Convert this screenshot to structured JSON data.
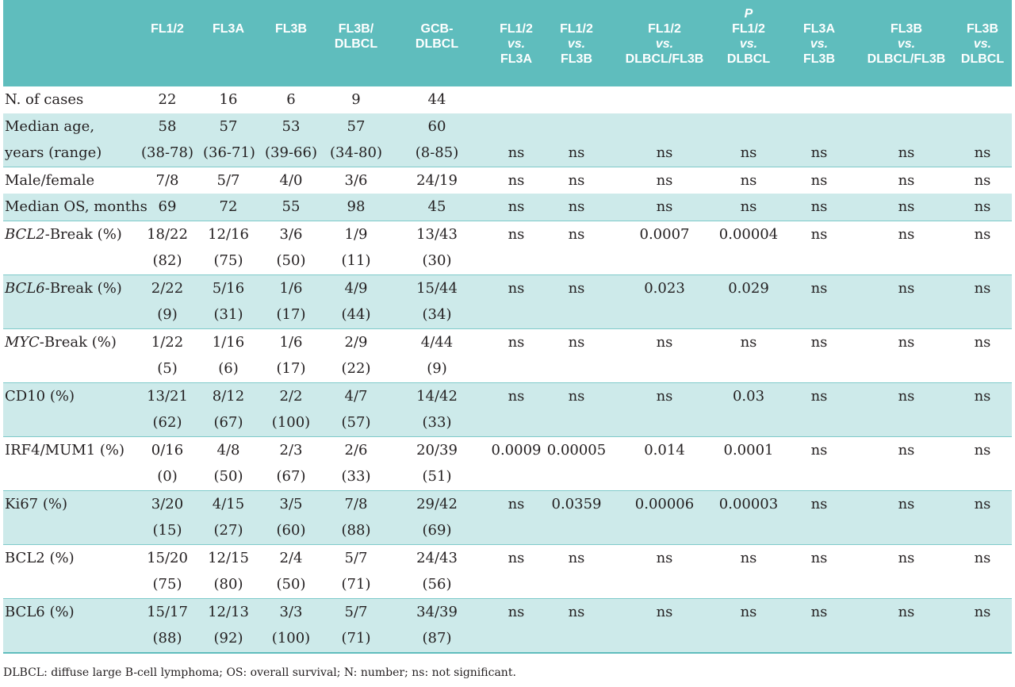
{
  "header": {
    "p_label": "P",
    "columns": [
      {
        "top": "",
        "l1": "",
        "l2": "",
        "vs": false
      },
      {
        "top": "",
        "l1": "FL1/2",
        "l2": "",
        "vs": false
      },
      {
        "top": "",
        "l1": "FL3A",
        "l2": "",
        "vs": false
      },
      {
        "top": "",
        "l1": "FL3B",
        "l2": "",
        "vs": false
      },
      {
        "top": "",
        "l1": "FL3B/",
        "l2": "DLBCL",
        "vs": false
      },
      {
        "top": "",
        "l1": "GCB-",
        "l2": "DLBCL",
        "vs": false
      },
      {
        "top": "",
        "l1": "FL1/2",
        "vs_text": "vs.",
        "l2": "FL3A",
        "vs": true
      },
      {
        "top": "",
        "l1": "FL1/2",
        "vs_text": "vs.",
        "l2": "FL3B",
        "vs": true
      },
      {
        "top": "",
        "l1": "FL1/2",
        "vs_text": "vs.",
        "l2": "DLBCL/FL3B",
        "vs": true
      },
      {
        "top": "P",
        "l1": "FL1/2",
        "vs_text": "vs.",
        "l2": "DLBCL",
        "vs": true
      },
      {
        "top": "",
        "l1": "FL3A",
        "vs_text": "vs.",
        "l2": "FL3B",
        "vs": true
      },
      {
        "top": "",
        "l1": "FL3B",
        "vs_text": "vs.",
        "l2": "DLBCL/FL3B",
        "vs": true
      },
      {
        "top": "",
        "l1": "FL3B",
        "vs_text": "vs.",
        "l2": "DLBCL",
        "vs": true
      }
    ]
  },
  "rows": [
    {
      "label": "N. of cases",
      "label2": "",
      "italic_prefix": "",
      "label_suffix": "",
      "shade": false,
      "group_start": false,
      "line1": [
        "22",
        "16",
        "6",
        "9",
        "44",
        "",
        "",
        "",
        "",
        "",
        "",
        ""
      ],
      "line2": null
    },
    {
      "label": "Median age,",
      "label2": "years (range)",
      "italic_prefix": "",
      "label_suffix": "",
      "shade": true,
      "group_start": false,
      "line1": [
        "58",
        "57",
        "53",
        "57",
        "60",
        "",
        "",
        "",
        "",
        "",
        "",
        ""
      ],
      "line2": [
        "(38-78)",
        "(36-71)",
        "(39-66)",
        "(34-80)",
        "(8-85)",
        "ns",
        "ns",
        "ns",
        "ns",
        "ns",
        "ns",
        "ns"
      ]
    },
    {
      "label": "Male/female",
      "label2": "",
      "italic_prefix": "",
      "label_suffix": "",
      "shade": false,
      "group_start": true,
      "line1": [
        "7/8",
        "5/7",
        "4/0",
        "3/6",
        "24/19",
        "ns",
        "ns",
        "ns",
        "ns",
        "ns",
        "ns",
        "ns"
      ],
      "line2": null
    },
    {
      "label": "Median OS, months",
      "label2": "",
      "italic_prefix": "",
      "label_suffix": "",
      "shade": true,
      "group_start": false,
      "line1": [
        "69",
        "72",
        "55",
        "98",
        "45",
        "ns",
        "ns",
        "ns",
        "ns",
        "ns",
        "ns",
        "ns"
      ],
      "line2": null
    },
    {
      "label": "",
      "label2": "",
      "italic_prefix": "BCL2",
      "label_suffix": "-Break (%)",
      "shade": false,
      "group_start": true,
      "line1": [
        "18/22",
        "12/16",
        "3/6",
        "1/9",
        "13/43",
        "ns",
        "ns",
        "0.0007",
        "0.00004",
        "ns",
        "ns",
        "ns"
      ],
      "line2": [
        "(82)",
        "(75)",
        "(50)",
        "(11)",
        "(30)",
        "",
        "",
        "",
        "",
        "",
        "",
        ""
      ]
    },
    {
      "label": "",
      "label2": "",
      "italic_prefix": "BCL6",
      "label_suffix": "-Break (%)",
      "shade": true,
      "group_start": true,
      "line1": [
        "2/22",
        "5/16",
        "1/6",
        "4/9",
        "15/44",
        "ns",
        "ns",
        "0.023",
        "0.029",
        "ns",
        "ns",
        "ns"
      ],
      "line2": [
        "(9)",
        "(31)",
        "(17)",
        "(44)",
        "(34)",
        "",
        "",
        "",
        "",
        "",
        "",
        ""
      ]
    },
    {
      "label": "",
      "label2": "",
      "italic_prefix": "MYC",
      "label_suffix": "-Break (%)",
      "shade": false,
      "group_start": true,
      "line1": [
        "1/22",
        "1/16",
        "1/6",
        "2/9",
        "4/44",
        "ns",
        "ns",
        "ns",
        "ns",
        "ns",
        "ns",
        "ns"
      ],
      "line2": [
        "(5)",
        "(6)",
        "(17)",
        "(22)",
        "(9)",
        "",
        "",
        "",
        "",
        "",
        "",
        ""
      ]
    },
    {
      "label": "CD10 (%)",
      "label2": "",
      "italic_prefix": "",
      "label_suffix": "",
      "shade": true,
      "group_start": true,
      "line1": [
        "13/21",
        "8/12",
        "2/2",
        "4/7",
        "14/42",
        "ns",
        "ns",
        "ns",
        "0.03",
        "ns",
        "ns",
        "ns"
      ],
      "line2": [
        "(62)",
        "(67)",
        "(100)",
        "(57)",
        "(33)",
        "",
        "",
        "",
        "",
        "",
        "",
        ""
      ]
    },
    {
      "label": "IRF4/MUM1 (%)",
      "label2": "",
      "italic_prefix": "",
      "label_suffix": "",
      "shade": false,
      "group_start": true,
      "line1": [
        "0/16",
        "4/8",
        "2/3",
        "2/6",
        "20/39",
        "0.0009",
        "0.00005",
        "0.014",
        "0.0001",
        "ns",
        "ns",
        "ns"
      ],
      "line2": [
        "(0)",
        "(50)",
        "(67)",
        "(33)",
        "(51)",
        "",
        "",
        "",
        "",
        "",
        "",
        ""
      ]
    },
    {
      "label": "Ki67 (%)",
      "label2": "",
      "italic_prefix": "",
      "label_suffix": "",
      "shade": true,
      "group_start": true,
      "line1": [
        "3/20",
        "4/15",
        "3/5",
        "7/8",
        "29/42",
        "ns",
        "0.0359",
        "0.00006",
        "0.00003",
        "ns",
        "ns",
        "ns"
      ],
      "line2": [
        "(15)",
        "(27)",
        "(60)",
        "(88)",
        "(69)",
        "",
        "",
        "",
        "",
        "",
        "",
        ""
      ]
    },
    {
      "label": "BCL2 (%)",
      "label2": "",
      "italic_prefix": "",
      "label_suffix": "",
      "shade": false,
      "group_start": true,
      "line1": [
        "15/20",
        "12/15",
        "2/4",
        "5/7",
        "24/43",
        "ns",
        "ns",
        "ns",
        "ns",
        "ns",
        "ns",
        "ns"
      ],
      "line2": [
        "(75)",
        "(80)",
        "(50)",
        "(71)",
        "(56)",
        "",
        "",
        "",
        "",
        "",
        "",
        ""
      ]
    },
    {
      "label": "BCL6 (%)",
      "label2": "",
      "italic_prefix": "",
      "label_suffix": "",
      "shade": true,
      "group_start": true,
      "line1": [
        "15/17",
        "12/13",
        "3/3",
        "5/7",
        "34/39",
        "ns",
        "ns",
        "ns",
        "ns",
        "ns",
        "ns",
        "ns"
      ],
      "line2": [
        "(88)",
        "(92)",
        "(100)",
        "(71)",
        "(87)",
        "",
        "",
        "",
        "",
        "",
        "",
        ""
      ]
    }
  ],
  "footnote": "DLBCL: diffuse large B-cell lymphoma; OS: overall survival; N: number; ns: not significant."
}
